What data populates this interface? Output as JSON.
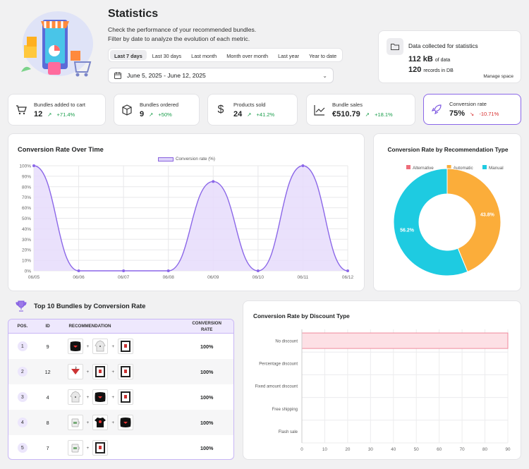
{
  "header": {
    "title": "Statistics",
    "subtitle_line1": "Check the performance of your recommended bundles.",
    "subtitle_line2": "Filter by date to analyze the evolution of each metric."
  },
  "date_ranges": [
    "Last 7 days",
    "Last 30 days",
    "Last month",
    "Month over month",
    "Last year",
    "Year to date"
  ],
  "selected_range": "Last 7 days",
  "date_picker": {
    "value": "June 5, 2025 - June 12, 2025"
  },
  "storage": {
    "title": "Data collected for statistics",
    "size_value": "112 kB",
    "size_suffix": "of data",
    "records_value": "120",
    "records_suffix": "records in DB",
    "manage_link": "Manage space"
  },
  "stats": [
    {
      "label": "Bundles added to cart",
      "value": "12",
      "delta": "+71.4%",
      "icon": "cart-icon"
    },
    {
      "label": "Bundles ordered",
      "value": "9",
      "delta": "+50%",
      "icon": "box-icon"
    },
    {
      "label": "Products sold",
      "value": "24",
      "delta": "+41.2%",
      "icon": "dollar-icon"
    },
    {
      "label": "Bundle sales",
      "value": "€510.79",
      "delta": "+18.1%",
      "icon": "trend-chart-icon"
    },
    {
      "label": "Conversion rate",
      "value": "75%",
      "delta": "-10.71%",
      "icon": "rocket-icon"
    }
  ],
  "colors": {
    "accent": "#8b67e8",
    "positive": "#1a9e4b",
    "negative": "#d72c2c",
    "alternative": "#ee6d7a",
    "automatic": "#fbad3a",
    "manual": "#1ecbe1"
  },
  "chart_data": [
    {
      "type": "area",
      "title": "Conversion Rate Over Time",
      "legend": [
        "Conversion rate (%)"
      ],
      "categories": [
        "06/05",
        "06/06",
        "06/07",
        "06/08",
        "06/09",
        "06/10",
        "06/11",
        "06/12"
      ],
      "series": [
        {
          "name": "Conversion rate (%)",
          "values": [
            100,
            0,
            0,
            0,
            85,
            0,
            100,
            0
          ]
        }
      ],
      "ylim": [
        0,
        100
      ],
      "yticks": [
        "0%",
        "10%",
        "20%",
        "30%",
        "40%",
        "50%",
        "60%",
        "70%",
        "80%",
        "90%",
        "100%"
      ]
    },
    {
      "type": "pie",
      "title": "Conversion Rate by Recommendation Type",
      "legend": [
        "Alternative",
        "Automatic",
        "Manual"
      ],
      "categories": [
        "Alternative",
        "Automatic",
        "Manual"
      ],
      "values": [
        0,
        43.8,
        56.2
      ],
      "labels": [
        "",
        "43.8%",
        "56.2%"
      ]
    },
    {
      "type": "bar",
      "orientation": "horizontal",
      "title": "Conversion Rate by Discount Type",
      "categories": [
        "No discount",
        "Percentage discount",
        "Fixed amount discount",
        "Free shipping",
        "Flash sale"
      ],
      "values": [
        90,
        0,
        0,
        0,
        0
      ],
      "xlim": [
        0,
        90
      ],
      "xticks": [
        "0",
        "10",
        "20",
        "30",
        "40",
        "50",
        "60",
        "70",
        "80",
        "90"
      ]
    }
  ],
  "top_bundles": {
    "title": "Top 10 Bundles by Conversion Rate",
    "columns": [
      "POS.",
      "ID",
      "RECOMMENDATION",
      "CONVERSION RATE"
    ],
    "rows": [
      {
        "pos": "1",
        "id": "9",
        "products": [
          "pillow",
          "hoodie",
          "frame"
        ],
        "rate": "100%"
      },
      {
        "pos": "2",
        "id": "12",
        "products": [
          "hanger",
          "frame",
          "frame"
        ],
        "rate": "100%"
      },
      {
        "pos": "3",
        "id": "4",
        "products": [
          "hoodie",
          "pillow",
          "frame"
        ],
        "rate": "100%"
      },
      {
        "pos": "4",
        "id": "8",
        "products": [
          "mug",
          "tshirt",
          "pillow"
        ],
        "rate": "100%"
      },
      {
        "pos": "5",
        "id": "7",
        "products": [
          "mug",
          "frame"
        ],
        "rate": "100%"
      }
    ]
  }
}
